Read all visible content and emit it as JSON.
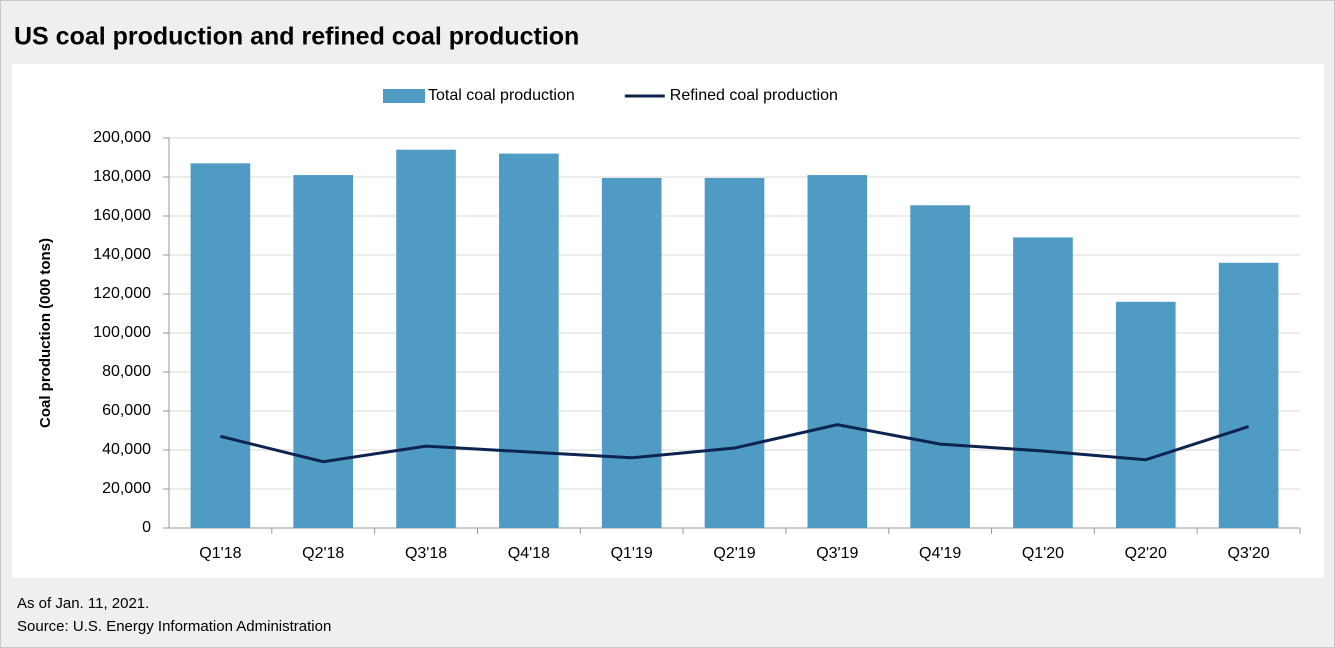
{
  "chart_data": {
    "type": "bar",
    "title": "US coal production and refined coal production",
    "y_label": "Coal production (000 tons)",
    "notes": [
      "As of Jan. 11, 2021.",
      "Source: U.S. Energy Information Administration"
    ],
    "categories": [
      "Q1'18",
      "Q2'18",
      "Q3'18",
      "Q4'18",
      "Q1'19",
      "Q2'19",
      "Q3'19",
      "Q4'19",
      "Q1'20",
      "Q2'20",
      "Q3'20"
    ],
    "series": [
      {
        "name": "Total coal production",
        "type": "bar",
        "color": "#4f9bc4",
        "values": [
          187000,
          181000,
          194000,
          192000,
          179500,
          179500,
          181000,
          165500,
          149000,
          116000,
          136000
        ]
      },
      {
        "name": "Refined coal production",
        "type": "line",
        "color": "#0d2451",
        "values": [
          47000,
          34000,
          42000,
          39000,
          36000,
          41000,
          53000,
          43000,
          39500,
          35000,
          52000
        ]
      }
    ],
    "ylim": [
      0,
      200000
    ],
    "yticks": [
      0,
      {
        "value": 20000,
        "label": "20,000"
      },
      {
        "value": 40000,
        "label": "40,000"
      },
      {
        "value": 60000,
        "label": "60,000"
      },
      {
        "value": 80000,
        "label": "80,000"
      },
      {
        "value": 100000,
        "label": "100,000"
      },
      {
        "value": 120000,
        "label": "120,000"
      },
      {
        "value": 140000,
        "label": "140,000"
      },
      {
        "value": 160000,
        "label": "160,000"
      },
      {
        "value": 180000,
        "label": "180,000"
      },
      {
        "value": 200000,
        "label": "200,000"
      }
    ],
    "grid": true,
    "legend": "top"
  }
}
